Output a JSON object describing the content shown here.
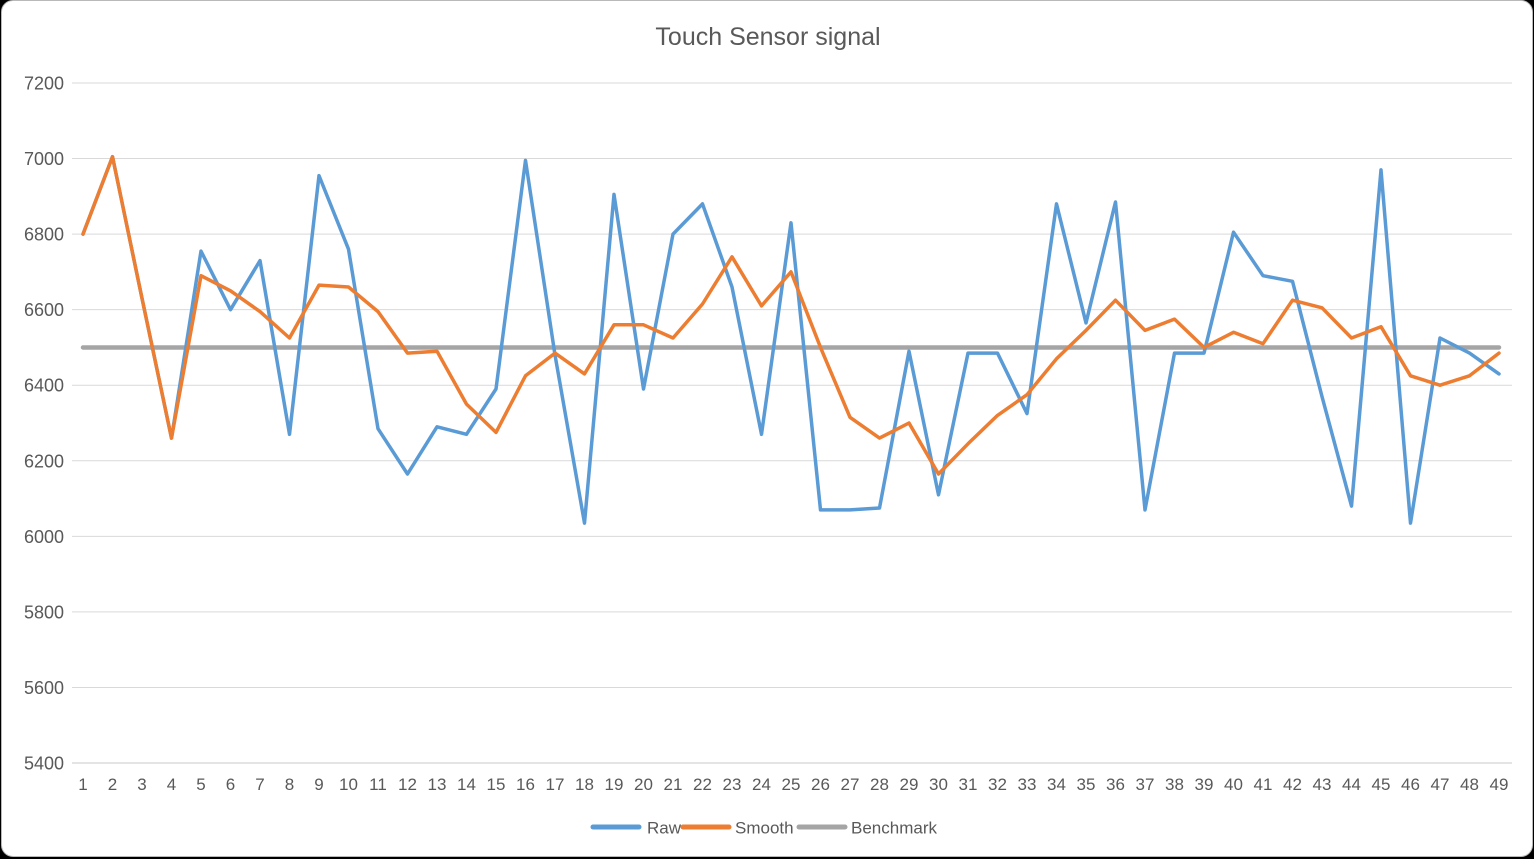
{
  "chart_data": {
    "type": "line",
    "title": "Touch Sensor signal",
    "x": [
      1,
      2,
      3,
      4,
      5,
      6,
      7,
      8,
      9,
      10,
      11,
      12,
      13,
      14,
      15,
      16,
      17,
      18,
      19,
      20,
      21,
      22,
      23,
      24,
      25,
      26,
      27,
      28,
      29,
      30,
      31,
      32,
      33,
      34,
      35,
      36,
      37,
      38,
      39,
      40,
      41,
      42,
      43,
      44,
      45,
      46,
      47,
      48,
      49
    ],
    "series": [
      {
        "name": "Raw",
        "color": "#5B9BD5",
        "values": [
          6800,
          7005,
          6630,
          6260,
          6755,
          6600,
          6730,
          6270,
          6955,
          6760,
          6285,
          6165,
          6290,
          6270,
          6390,
          6995,
          6480,
          6035,
          6905,
          6390,
          6800,
          6880,
          6660,
          6270,
          6830,
          6070,
          6070,
          6075,
          6490,
          6110,
          6485,
          6485,
          6325,
          6880,
          6565,
          6885,
          6070,
          6485,
          6485,
          6805,
          6690,
          6675,
          6370,
          6080,
          6970,
          6035,
          6525,
          6485,
          6430
        ]
      },
      {
        "name": "Smooth",
        "color": "#ED7D31",
        "values": [
          6800,
          7005,
          6630,
          6260,
          6690,
          6650,
          6595,
          6525,
          6665,
          6660,
          6595,
          6485,
          6490,
          6350,
          6275,
          6425,
          6485,
          6430,
          6560,
          6560,
          6525,
          6615,
          6740,
          6610,
          6700,
          6500,
          6315,
          6260,
          6300,
          6165,
          6245,
          6320,
          6375,
          6470,
          6545,
          6625,
          6545,
          6575,
          6500,
          6540,
          6510,
          6625,
          6605,
          6525,
          6555,
          6425,
          6400,
          6425,
          6485
        ]
      },
      {
        "name": "Benchmark",
        "color": "#A5A5A5",
        "constant": 6500
      }
    ],
    "ylim": [
      5400,
      7200
    ],
    "yticks": [
      7200,
      7000,
      6800,
      6600,
      6400,
      6200,
      6000,
      5800,
      5600,
      5400
    ],
    "grid": true,
    "legend_position": "bottom",
    "legend_labels": [
      "Raw",
      "Smooth",
      "Benchmark"
    ],
    "axis_text_color": "#595959",
    "gridline_color": "#D9D9D9",
    "axis_line_color": "#C9C9C9"
  }
}
